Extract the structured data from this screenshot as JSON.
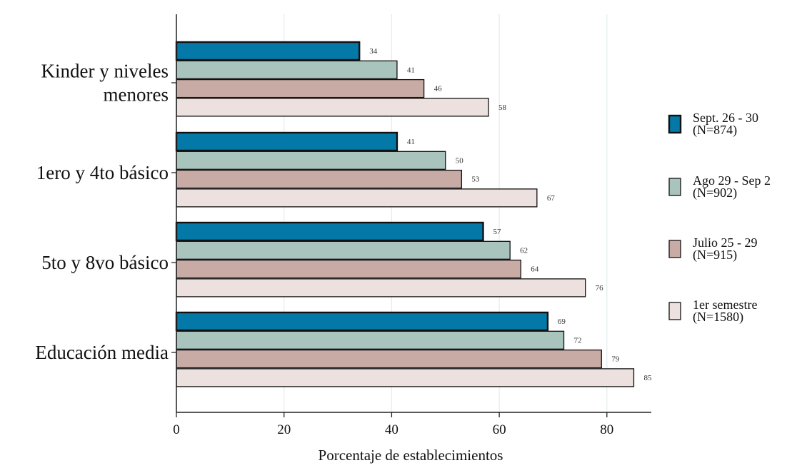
{
  "chart_data": {
    "type": "bar",
    "orientation": "horizontal",
    "title": "",
    "xlabel": "Porcentaje de establecimientos",
    "ylabel": "",
    "xlim": [
      0,
      88
    ],
    "xticks": [
      0,
      20,
      40,
      60,
      80
    ],
    "xtick_labels": [
      "0",
      "20",
      "40",
      "60",
      "80"
    ],
    "grid": "vertical",
    "legend_position": "right",
    "categories": [
      [
        "Kinder y niveles",
        "menores"
      ],
      [
        "1ero y 4to básico"
      ],
      [
        "5to y 8vo básico"
      ],
      [
        "Educación media"
      ]
    ],
    "series": [
      {
        "name": [
          "Sept. 26 - 30",
          "(N=874)"
        ],
        "color": "#0479a8",
        "values": [
          34,
          41,
          57,
          69
        ]
      },
      {
        "name": [
          "Ago 29 - Sep 2",
          "(N=902)"
        ],
        "color": "#a8c4bd",
        "values": [
          41,
          50,
          62,
          72
        ]
      },
      {
        "name": [
          "Julio 25 - 29",
          "(N=915)"
        ],
        "color": "#c9aba5",
        "values": [
          46,
          53,
          64,
          79
        ]
      },
      {
        "name": [
          "1er semestre",
          "(N=1580)"
        ],
        "color": "#ede1e0",
        "values": [
          58,
          67,
          76,
          85
        ]
      }
    ]
  }
}
